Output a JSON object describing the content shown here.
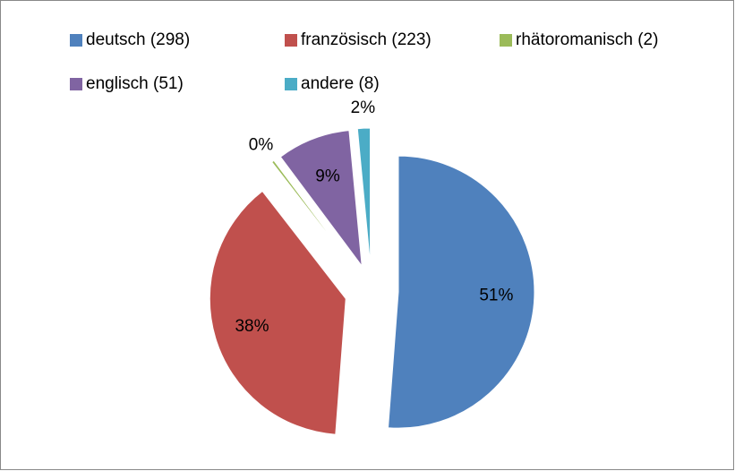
{
  "chart_data": {
    "type": "pie",
    "categories": [
      "deutsch (298)",
      "französisch (223)",
      "rhätoromanisch (2)",
      "englisch (51)",
      "andere (8)"
    ],
    "values": [
      51.2,
      38.3,
      0.3,
      8.7,
      1.5
    ],
    "value_labels": [
      "51%",
      "38%",
      "0%",
      "9%",
      "2%"
    ],
    "colors": [
      "#4f81bd",
      "#c0504d",
      "#9bbb59",
      "#8064a2",
      "#4bacc6"
    ],
    "exploded": true,
    "legend": "top"
  }
}
